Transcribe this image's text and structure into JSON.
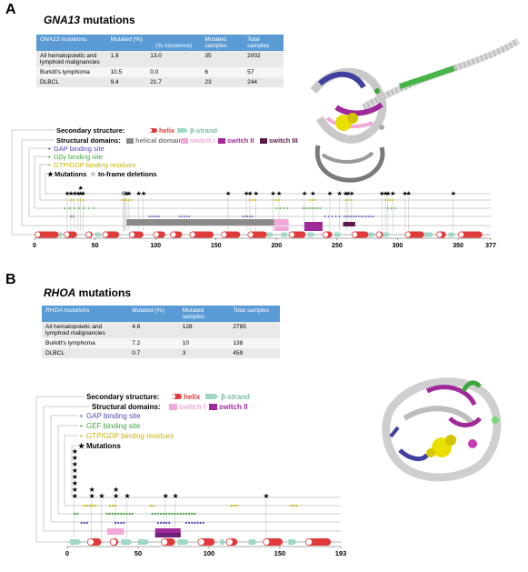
{
  "panelA": {
    "letter": "A",
    "title_gene": "GNA13",
    "title_rest": " mutations",
    "table": {
      "headers": [
        "GNA13 mutations",
        "Mutated (%)",
        "(% nonsense)",
        "Mutated samples",
        "Total samples"
      ],
      "rows": [
        [
          "All hematopoietic and lymphoid malignancies",
          "1.8",
          "13.0",
          "35",
          "2002"
        ],
        [
          "Burkitt's lymphoma",
          "10.5",
          "0.0",
          "6",
          "57"
        ],
        [
          "DLBCL",
          "9.4",
          "21.7",
          "23",
          "244"
        ]
      ]
    },
    "legend": {
      "secondary": "Secondary structure:",
      "helix": "helix",
      "strand": "β-strand",
      "structural": "Structural domains:",
      "helical_domain": "helical domain",
      "switch1": "switch I",
      "switch2": "switch II",
      "switch3": "switch III",
      "gap": "GAP binding site",
      "gby": "Gβγ binding site",
      "gtp": "GTP/GDP binding residues",
      "mut": "Mutations",
      "inframe": "In-frame deletions"
    },
    "axis_ticks": [
      "0",
      "50",
      "100",
      "150",
      "200",
      "250",
      "300",
      "350",
      "377"
    ]
  },
  "panelB": {
    "letter": "B",
    "title_gene": "RHOA",
    "title_rest": " mutations",
    "table": {
      "headers": [
        "RHOA mutations",
        "Mutated (%)",
        "Mutated samples",
        "Total samples"
      ],
      "rows": [
        [
          "All hematopoietic and lymphoid malignancies",
          "4.6",
          "128",
          "2785"
        ],
        [
          "Burkitt's lymphoma",
          "7.2",
          "10",
          "138"
        ],
        [
          "DLBCL",
          "0.7",
          "3",
          "459"
        ]
      ]
    },
    "legend": {
      "secondary": "Secondary structure:",
      "helix": "helix",
      "strand": "β-strand",
      "structural": "Structural domains:",
      "switch1": "switch I",
      "switch2": "switch II",
      "gap": "GAP binding site",
      "gef": "GEF binding site",
      "gtp": "GTP/GDP binding residues",
      "mut": "Mutations"
    },
    "axis_ticks": [
      "0",
      "50",
      "100",
      "150",
      "193"
    ]
  },
  "colors": {
    "helix": "#e03a3a",
    "strand": "#9fd8c8",
    "helical_domain": "#8a8a8a",
    "switch1": "#f2a8d8",
    "switch2": "#a0299a",
    "switch3": "#5a1a4a",
    "gap": "#4b4bb4",
    "gby": "#3aa83a",
    "gtp": "#c8b400",
    "header_blue": "#5b9bd5"
  }
}
